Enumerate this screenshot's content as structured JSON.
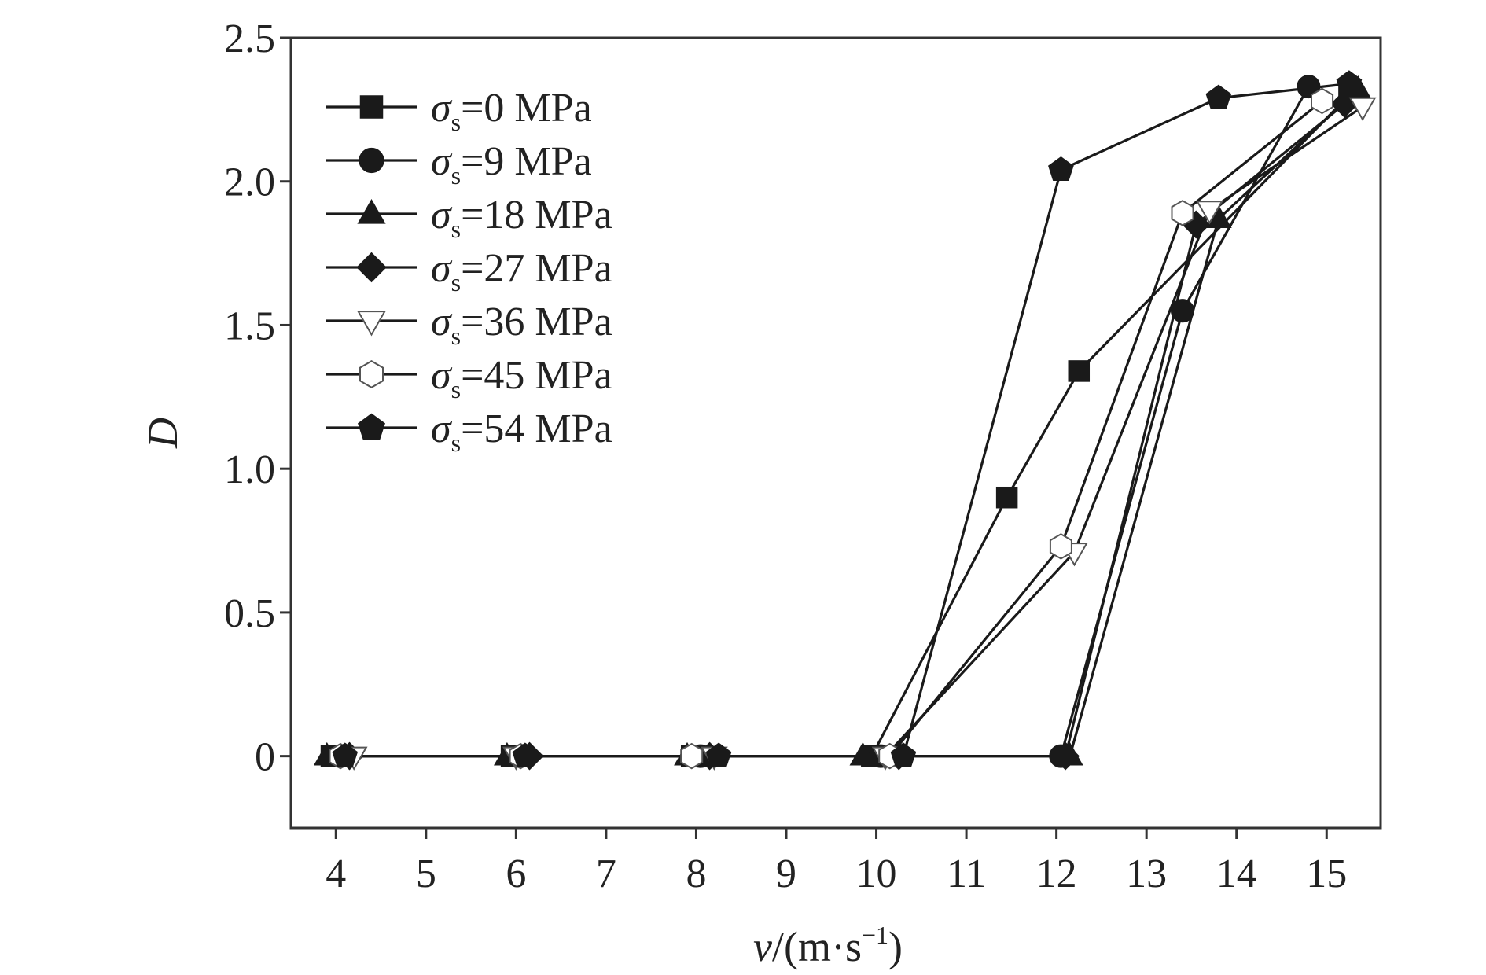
{
  "chart_data": {
    "type": "line",
    "xlabel": {
      "var": "v",
      "unit_pre": "/(m·s",
      "unit_sup": "−1",
      "unit_post": ")"
    },
    "ylabel": "D",
    "xlim": [
      3.5,
      15.6
    ],
    "ylim": [
      -0.25,
      2.5
    ],
    "xticks": [
      4,
      5,
      6,
      7,
      8,
      9,
      10,
      11,
      12,
      13,
      14,
      15
    ],
    "yticks": [
      {
        "v": 0,
        "label": "0"
      },
      {
        "v": 0.5,
        "label": "0.5"
      },
      {
        "v": 1.0,
        "label": "1.0"
      },
      {
        "v": 1.5,
        "label": "1.5"
      },
      {
        "v": 2.0,
        "label": "2.0"
      },
      {
        "v": 2.5,
        "label": "2.5"
      }
    ],
    "grid": false,
    "legend_position": "top-left",
    "color": "#1a1a1a",
    "series": [
      {
        "name": "σs=0 MPa",
        "symbol": "σ",
        "sub": "s",
        "value": "=0 MPa",
        "marker": "square",
        "filled": true,
        "points": [
          [
            3.95,
            0
          ],
          [
            5.95,
            0
          ],
          [
            7.95,
            0
          ],
          [
            9.95,
            0
          ],
          [
            11.45,
            0.9
          ],
          [
            12.25,
            1.34
          ],
          [
            15.25,
            2.3
          ]
        ]
      },
      {
        "name": "σs=9 MPa",
        "symbol": "σ",
        "sub": "s",
        "value": "=9 MPa",
        "marker": "circle",
        "filled": true,
        "points": [
          [
            4.05,
            0
          ],
          [
            6.05,
            0
          ],
          [
            8.05,
            0
          ],
          [
            10.05,
            0
          ],
          [
            12.05,
            0
          ],
          [
            13.4,
            1.55
          ],
          [
            14.8,
            2.33
          ]
        ]
      },
      {
        "name": "σs=18 MPa",
        "symbol": "σ",
        "sub": "s",
        "value": "=18 MPa",
        "marker": "triangle-up",
        "filled": true,
        "points": [
          [
            3.9,
            0
          ],
          [
            5.9,
            0
          ],
          [
            7.9,
            0
          ],
          [
            9.85,
            0
          ],
          [
            12.15,
            0
          ],
          [
            13.8,
            1.87
          ],
          [
            15.35,
            2.32
          ]
        ]
      },
      {
        "name": "σs=27 MPa",
        "symbol": "σ",
        "sub": "s",
        "value": "=27 MPa",
        "marker": "diamond",
        "filled": true,
        "points": [
          [
            4.15,
            0
          ],
          [
            6.15,
            0
          ],
          [
            8.15,
            0
          ],
          [
            10.25,
            0
          ],
          [
            12.1,
            0
          ],
          [
            13.55,
            1.85
          ],
          [
            15.2,
            2.27
          ]
        ]
      },
      {
        "name": "σs=36 MPa",
        "symbol": "σ",
        "sub": "s",
        "value": "=36 MPa",
        "marker": "triangle-down",
        "filled": false,
        "points": [
          [
            4.2,
            0
          ],
          [
            6.0,
            0
          ],
          [
            8.2,
            0
          ],
          [
            10.1,
            0
          ],
          [
            12.2,
            0.71
          ],
          [
            13.7,
            1.9
          ],
          [
            15.4,
            2.26
          ]
        ]
      },
      {
        "name": "σs=45 MPa",
        "symbol": "σ",
        "sub": "s",
        "value": "=45 MPa",
        "marker": "hexagon",
        "filled": false,
        "points": [
          [
            4.05,
            0
          ],
          [
            6.05,
            0
          ],
          [
            7.95,
            0
          ],
          [
            10.15,
            0
          ],
          [
            12.05,
            0.73
          ],
          [
            13.4,
            1.89
          ],
          [
            14.95,
            2.28
          ]
        ]
      },
      {
        "name": "σs=54 MPa",
        "symbol": "σ",
        "sub": "s",
        "value": "=54 MPa",
        "marker": "pentagon",
        "filled": true,
        "points": [
          [
            4.1,
            0
          ],
          [
            6.1,
            0
          ],
          [
            8.25,
            0
          ],
          [
            10.3,
            0
          ],
          [
            12.05,
            2.04
          ],
          [
            13.8,
            2.29
          ],
          [
            15.25,
            2.34
          ]
        ]
      }
    ]
  }
}
